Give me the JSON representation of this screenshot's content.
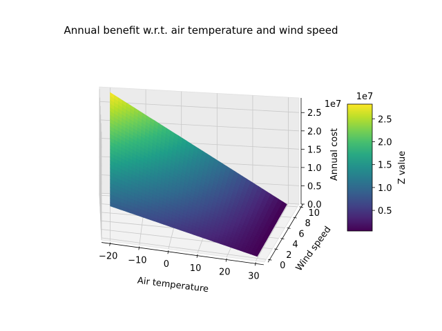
{
  "chart_data": {
    "type": "surface3d",
    "title": "Annual benefit w.r.t. air temperature and wind speed",
    "xlabel": "Air temperature",
    "ylabel": "Wind speed",
    "zlabel": "Annual cost",
    "z_offset_label": "1e7",
    "xlim": [
      -23,
      33
    ],
    "ylim": [
      -0.5,
      10.5
    ],
    "zlim": [
      0,
      2.9
    ],
    "x_ticks": [
      "−20",
      "−10",
      "0",
      "10",
      "20",
      "30"
    ],
    "y_ticks": [
      "0",
      "2",
      "4",
      "6",
      "8",
      "10"
    ],
    "z_ticks": [
      "0.0",
      "0.5",
      "1.0",
      "1.5",
      "2.0",
      "2.5"
    ],
    "x_tick_values": [
      -20,
      -10,
      0,
      10,
      20,
      30
    ],
    "y_tick_values": [
      0,
      2,
      4,
      6,
      8,
      10
    ],
    "z_tick_values": [
      0,
      0.5,
      1.0,
      1.5,
      2.0,
      2.5
    ],
    "colormap": "viridis",
    "colorbar": {
      "label": "Z value",
      "offset_label": "1e7",
      "ticks": [
        "0.5",
        "1.0",
        "1.5",
        "2.0",
        "2.5"
      ],
      "tick_values": [
        0.5,
        1.0,
        1.5,
        2.0,
        2.5
      ],
      "range": [
        0.05,
        2.82
      ]
    },
    "surface": {
      "x_range": [
        -20,
        30
      ],
      "y_range": [
        0,
        10
      ],
      "z_corners": {
        "x_min_y_min": 0.9,
        "x_min_y_max": 2.82,
        "x_max_y_min": 0.05,
        "x_max_y_max": 0.05
      }
    },
    "grid": true
  }
}
